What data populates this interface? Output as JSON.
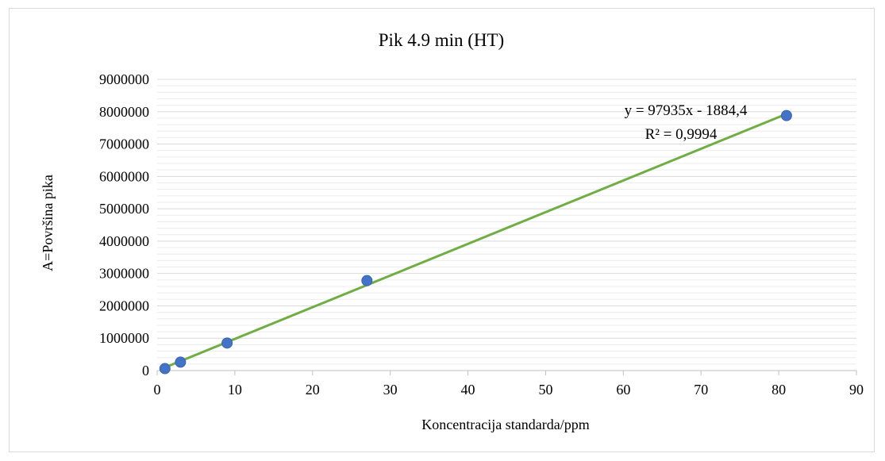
{
  "chart_data": {
    "type": "scatter",
    "title": "Pik 4.9 min (HT)",
    "xlabel": "Koncentracija standarda/ppm",
    "ylabel": "A=Površina pika",
    "xlim": [
      0,
      90
    ],
    "ylim": [
      0,
      9000000
    ],
    "x_ticks": [
      "0",
      "10",
      "20",
      "30",
      "40",
      "50",
      "60",
      "70",
      "80",
      "90"
    ],
    "y_ticks": [
      "0",
      "1000000",
      "2000000",
      "3000000",
      "4000000",
      "5000000",
      "6000000",
      "7000000",
      "8000000",
      "9000000"
    ],
    "grid": "horizontal major and minor",
    "legend": "none",
    "series": [
      {
        "x": [
          1,
          3,
          9,
          27,
          81
        ],
        "y": [
          60000,
          260000,
          850000,
          2780000,
          7880000
        ],
        "marker_color": "#4472c4"
      }
    ],
    "trendline": {
      "type": "linear",
      "slope": 97935,
      "intercept": -1884.4,
      "x_range": [
        1,
        81
      ],
      "color": "#70ad47",
      "equation_label": "y = 97935x - 1884,4",
      "r2_label": "R² = 0,9994"
    }
  }
}
